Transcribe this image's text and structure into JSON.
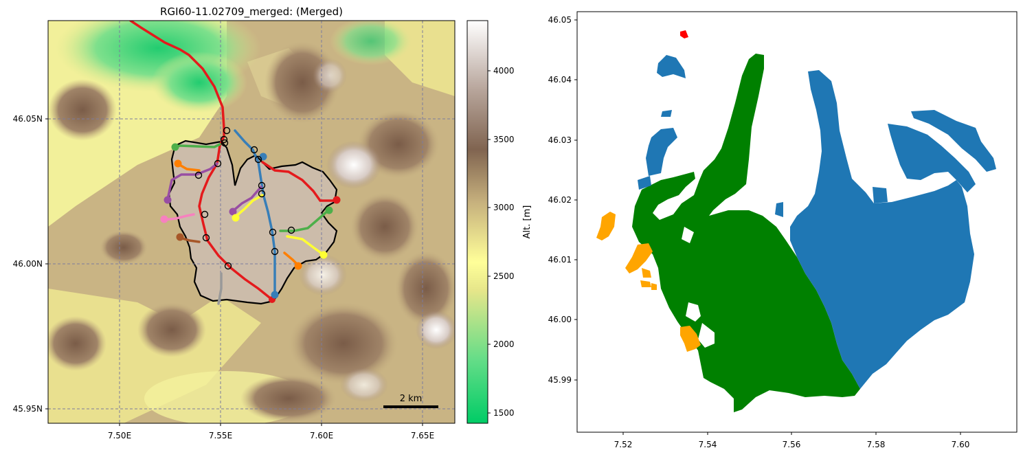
{
  "left_panel": {
    "title": "RGI60-11.02709_merged: (Merged)",
    "x_ticks": [
      "7.50E",
      "7.55E",
      "7.60E",
      "7.65E"
    ],
    "y_ticks": [
      "46.05N",
      "46.00N",
      "45.95N"
    ],
    "scale_bar_label": "2 km",
    "colorbar": {
      "label": "Alt. [m]",
      "ticks": [
        "4000",
        "3500",
        "3000",
        "2500",
        "2000",
        "1500"
      ],
      "range": [
        1430,
        4370
      ],
      "colormap": "terrain"
    }
  },
  "right_panel": {
    "x_ticks": [
      "7.52",
      "7.54",
      "7.56",
      "7.58",
      "7.60"
    ],
    "y_ticks": [
      "46.05",
      "46.04",
      "46.03",
      "46.02",
      "46.01",
      "46.00",
      "45.99"
    ],
    "legend_colors": {
      "main": "#008000",
      "tributaries": "#1f77b4",
      "small": "#ffa500",
      "tiny": "#ff0000"
    }
  },
  "flowline_colors": [
    "#e41a1c",
    "#377eb8",
    "#4daf4a",
    "#984ea3",
    "#ff7f00",
    "#ffff33",
    "#a65628",
    "#f781bf",
    "#999999"
  ]
}
